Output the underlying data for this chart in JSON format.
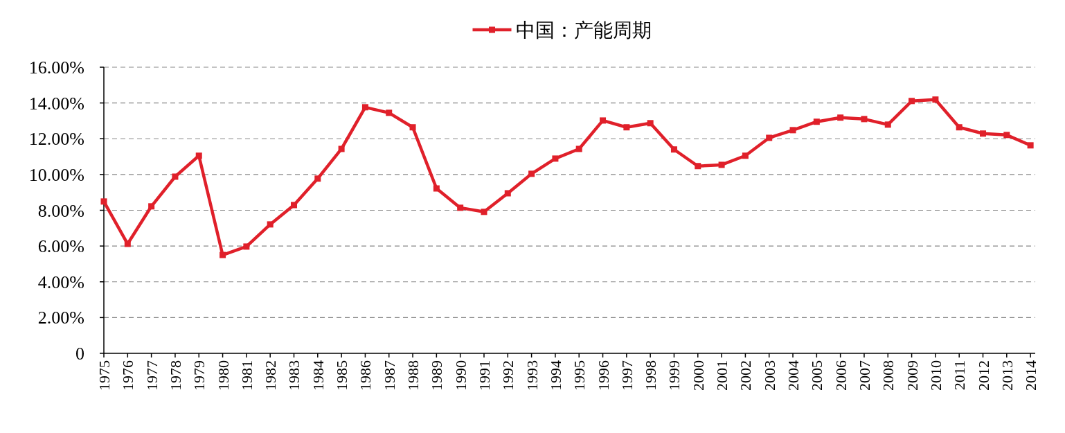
{
  "chart_data": {
    "type": "line",
    "categories": [
      "1975",
      "1976",
      "1977",
      "1978",
      "1979",
      "1980",
      "1981",
      "1982",
      "1983",
      "1984",
      "1985",
      "1986",
      "1987",
      "1988",
      "1989",
      "1990",
      "1991",
      "1992",
      "1993",
      "1994",
      "1995",
      "1996",
      "1997",
      "1998",
      "1999",
      "2000",
      "2001",
      "2002",
      "2003",
      "2004",
      "2005",
      "2006",
      "2007",
      "2008",
      "2009",
      "2010",
      "2011",
      "2012",
      "2013",
      "2014"
    ],
    "series": [
      {
        "name": "中国：产能周期",
        "color": "#e0202a",
        "values": [
          8.49,
          6.12,
          8.22,
          9.88,
          11.05,
          5.5,
          5.97,
          7.21,
          8.29,
          9.77,
          11.43,
          13.76,
          13.45,
          12.64,
          9.22,
          8.14,
          7.91,
          8.95,
          10.04,
          10.89,
          11.43,
          13.02,
          12.64,
          12.87,
          11.4,
          10.47,
          10.54,
          11.05,
          12.05,
          12.48,
          12.95,
          13.18,
          13.1,
          12.79,
          14.11,
          14.19,
          12.64,
          12.29,
          12.21,
          11.63
        ]
      }
    ],
    "ylim": [
      0,
      16
    ],
    "yticks": [
      0,
      {
        "value": 2,
        "label": "2.00%"
      },
      {
        "value": 4,
        "label": "4.00%"
      },
      {
        "value": 6,
        "label": "6.00%"
      },
      {
        "value": 8,
        "label": "8.00%"
      },
      {
        "value": 10,
        "label": "10.00%"
      },
      {
        "value": 12,
        "label": "12.00%"
      },
      {
        "value": 14,
        "label": "14.00%"
      },
      {
        "value": 16,
        "label": "16.00%"
      }
    ],
    "grid": "y",
    "legend": "top",
    "marker": "square",
    "line_style": "solid"
  }
}
